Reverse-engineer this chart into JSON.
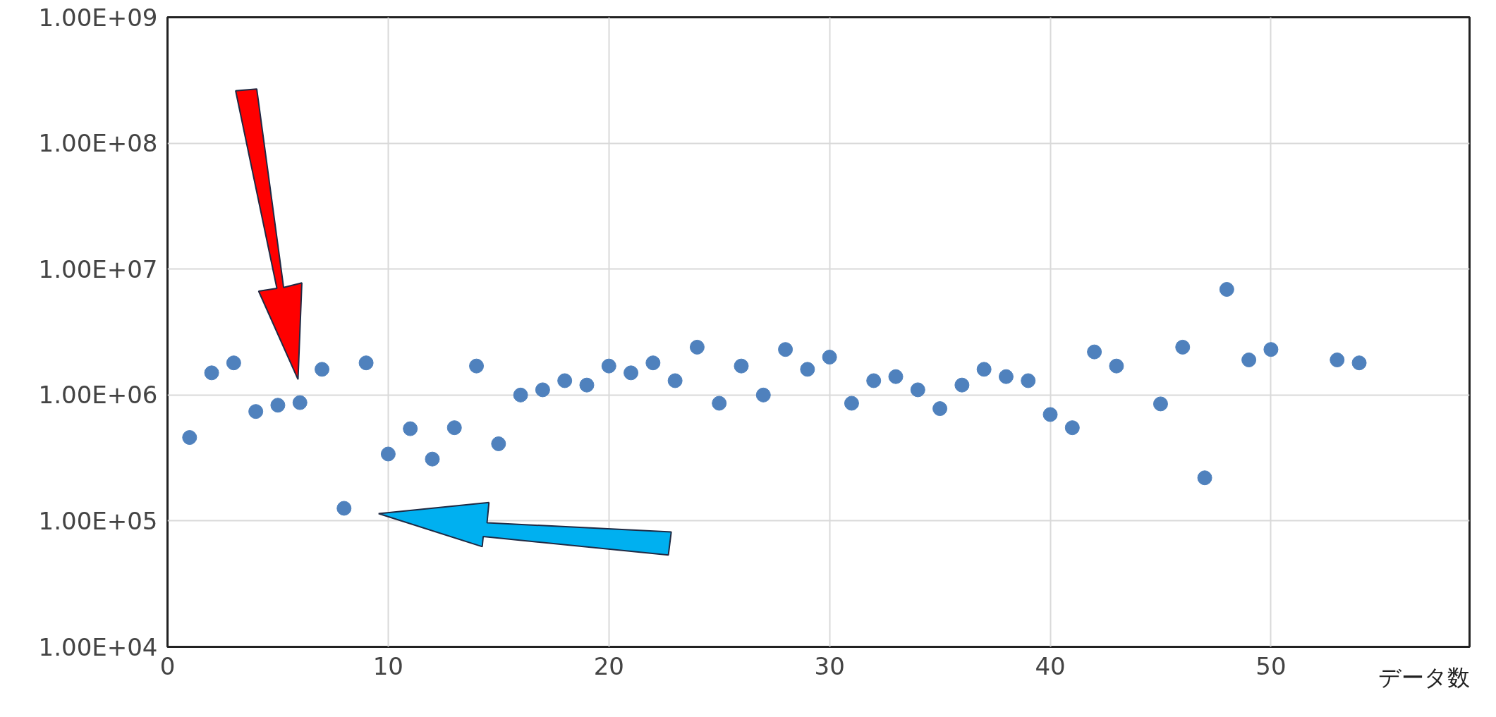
{
  "chart_data": {
    "type": "scatter",
    "xlabel": "データ数",
    "x": [
      1,
      2,
      3,
      4,
      5,
      6,
      7,
      8,
      9,
      10,
      11,
      12,
      13,
      14,
      15,
      16,
      17,
      18,
      19,
      20,
      21,
      22,
      23,
      24,
      25,
      26,
      27,
      28,
      29,
      30,
      31,
      32,
      33,
      34,
      35,
      36,
      37,
      38,
      39,
      40,
      41,
      42,
      43,
      45,
      46,
      47,
      48,
      49,
      50,
      53,
      54
    ],
    "series": [
      {
        "color": "#4f81bd",
        "values": [
          460000,
          1500000,
          1800000,
          740000,
          830000,
          870000,
          1600000,
          126000,
          1800000,
          340000,
          540000,
          310000,
          550000,
          1700000,
          410000,
          1000000,
          1100000,
          1300000,
          1200000,
          1700000,
          1500000,
          1800000,
          1300000,
          2400000,
          860000,
          1700000,
          1000000,
          2300000,
          1600000,
          2000000,
          860000,
          1300000,
          1400000,
          1100000,
          780000,
          1200000,
          1600000,
          1400000,
          1300000,
          700000,
          550000,
          2200000,
          1700000,
          850000,
          2400000,
          220000,
          6900000,
          1900000,
          2300000,
          1900000,
          1800000
        ]
      }
    ],
    "xlim": [
      0,
      59
    ],
    "xticks": [
      0,
      10,
      20,
      30,
      40,
      50
    ],
    "ylim": [
      10000,
      1000000000
    ],
    "yticks": [
      {
        "value": 10000,
        "label": "1.00E+04"
      },
      {
        "value": 100000,
        "label": "1.00E+05"
      },
      {
        "value": 1000000,
        "label": "1.00E+06"
      },
      {
        "value": 10000000,
        "label": "1.00E+07"
      },
      {
        "value": 100000000,
        "label": "1.00E+08"
      },
      {
        "value": 1000000000,
        "label": "1.00E+09"
      }
    ],
    "log": true,
    "grid": true,
    "marker": "circle"
  }
}
